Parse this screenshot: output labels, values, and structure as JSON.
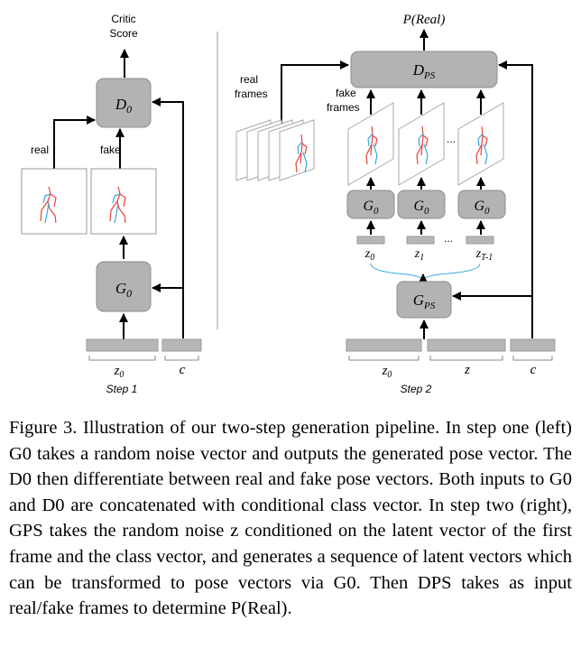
{
  "left": {
    "critic_score": [
      "Critic",
      "Score"
    ],
    "d0": "D",
    "d0_sub": "0",
    "real_label": "real",
    "fake_label": "fake",
    "g0": "G",
    "g0_sub": "0",
    "z0": "z",
    "z0_sub": "0",
    "c": "c",
    "step": "Step 1"
  },
  "right": {
    "p_real": "P(Real)",
    "dps": "D",
    "dps_sub": "PS",
    "real_frames": [
      "real",
      "frames"
    ],
    "fake_frames": [
      "fake",
      "frames"
    ],
    "g_blocks": [
      {
        "label": "G",
        "sub": "0"
      },
      {
        "label": "G",
        "sub": "0"
      },
      {
        "label": "G",
        "sub": "0"
      }
    ],
    "z_labels": [
      {
        "label": "z",
        "sub": "0"
      },
      {
        "label": "z",
        "sub": "1"
      },
      {
        "label": "z",
        "sub": "T-1"
      }
    ],
    "ellipsis": "...",
    "gps": "G",
    "gps_sub": "PS",
    "z0": "z",
    "z0_sub": "0",
    "z": "z",
    "c": "c",
    "step": "Step 2"
  },
  "caption": {
    "text": "Figure 3. Illustration of our two-step generation pipeline. In step one (left) G0 takes a random noise vector and outputs the generated pose vector. The D0 then differentiate between real and fake pose vectors. Both inputs to G0 and D0 are concatenated with conditional class vector. In step two (right), GPS takes the random noise z conditioned on the latent vector of the first frame and the class vector, and generates a sequence of latent vectors which can be transformed to pose vectors via G0. Then DPS takes as input real/fake frames to determine P(Real)."
  },
  "colors": {
    "block_fill": "#b3b3b3",
    "block_stroke": "#8c8c8c",
    "bar_fill": "#b7b7b7",
    "limb_red": "#e8413a",
    "limb_blue": "#37a7e0"
  }
}
